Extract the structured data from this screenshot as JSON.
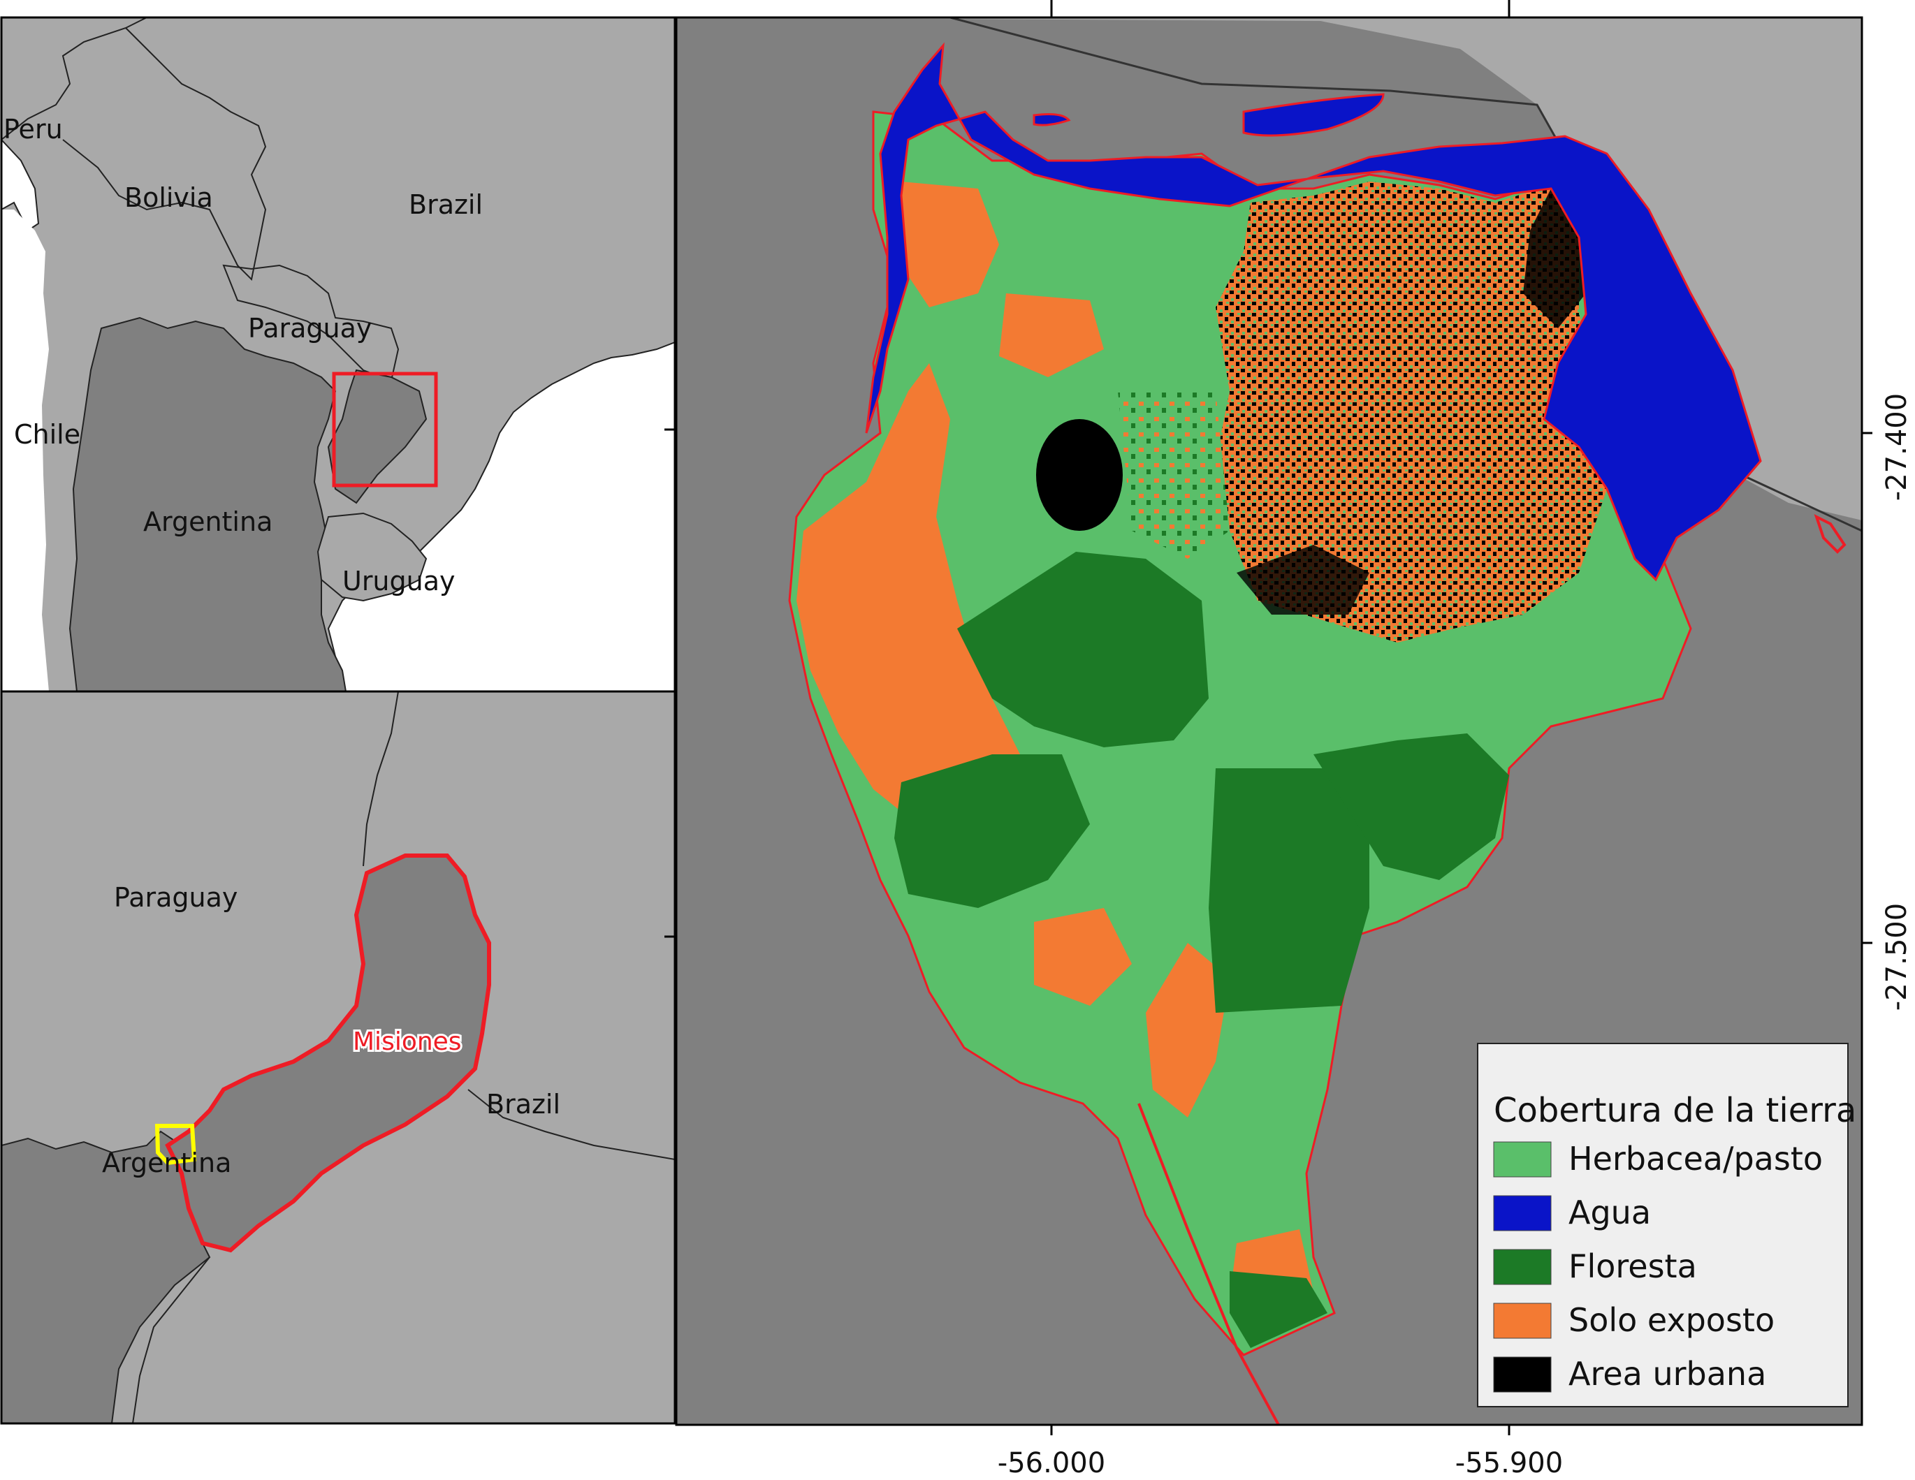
{
  "inset_top": {
    "countries": [
      "Peru",
      "Bolivia",
      "Brazil",
      "Paraguay",
      "Chile",
      "Argentina",
      "Uruguay"
    ]
  },
  "inset_bottom": {
    "countries": [
      "Paraguay",
      "Brazil",
      "Argentina"
    ],
    "province": "Misiones"
  },
  "main_map": {
    "x_ticks": [
      "-56.000",
      "-55.900"
    ],
    "y_ticks": [
      "-27.400",
      "-27.500"
    ]
  },
  "legend": {
    "title": "Cobertura de la tierra",
    "items": [
      {
        "label": "Herbacea/pasto",
        "color": "#5abf6a"
      },
      {
        "label": "Agua",
        "color": "#0a14c8"
      },
      {
        "label": "Floresta",
        "color": "#1c7a26"
      },
      {
        "label": "Solo exposto",
        "color": "#f37a33"
      },
      {
        "label": "Area urbana",
        "color": "#000000"
      }
    ]
  },
  "colors": {
    "background_gray": "#808080",
    "neighbor_gray": "#a9a9a9",
    "boundary_red": "#ee1c25",
    "study_area_yellow": "#ffff00"
  }
}
